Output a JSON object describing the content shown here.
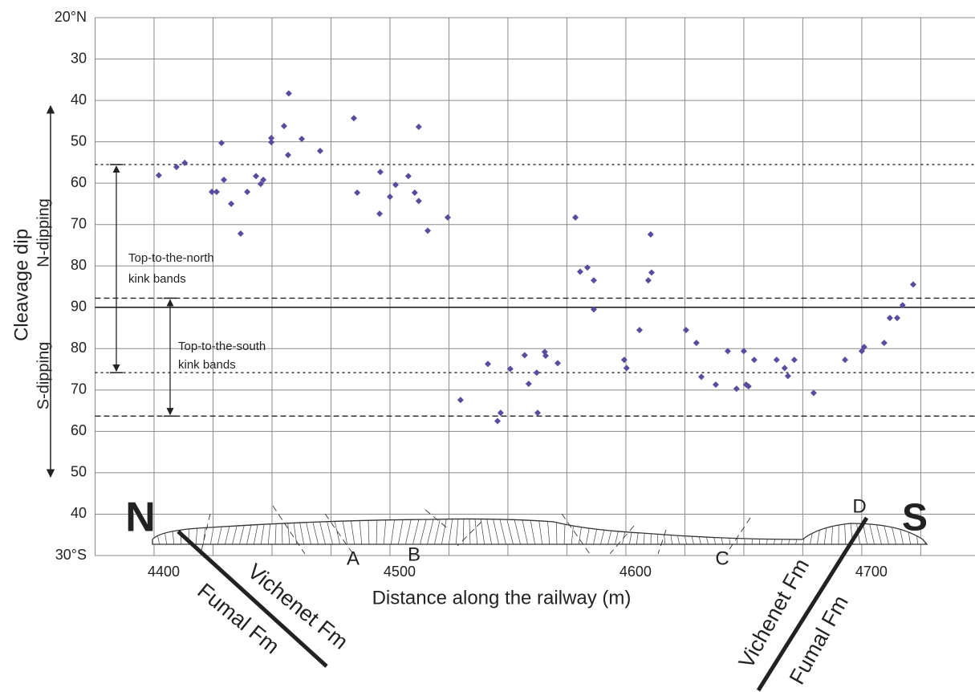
{
  "chart_data": {
    "type": "scatter",
    "ylabel": "Cleavage dip",
    "xlabel": "Distance along the railway (m)",
    "xlim": [
      4375,
      4748
    ],
    "xticks": [
      4400,
      4500,
      4600,
      4700
    ],
    "x_gridlines": [
      4375,
      4400,
      4425,
      4450,
      4475,
      4500,
      4525,
      4550,
      4575,
      4600,
      4625,
      4650,
      4675,
      4700,
      4725
    ],
    "ylim": [
      20,
      150
    ],
    "y_reversed": true,
    "yticks": [
      {
        "value": 20,
        "label": "20°N"
      },
      30,
      40,
      50,
      60,
      70,
      80,
      90,
      {
        "value": 100,
        "label": "80"
      },
      {
        "value": 110,
        "label": "70"
      },
      {
        "value": 120,
        "label": "60"
      },
      {
        "value": 130,
        "label": "50"
      },
      {
        "value": 140,
        "label": "40"
      },
      {
        "value": 150,
        "label": "30°S"
      }
    ],
    "grid": true,
    "color": "#5b4a9e",
    "x": [
      4402,
      4409.5,
      4413,
      4424.5,
      4426.5,
      4428.6,
      4429.6,
      4432.7,
      4436.7,
      4439.5,
      4443.2,
      4445.2,
      4446.3,
      4449.7,
      4449.7,
      4455.1,
      4456.8,
      4457.1,
      4462.6,
      4470.4,
      4484.7,
      4486.1,
      4495.6,
      4495.9,
      4500,
      4502.4,
      4507.8,
      4510.5,
      4512.2,
      4512.2,
      4516,
      4524.5,
      4529.9,
      4541.5,
      4545.6,
      4546.9,
      4551,
      4557.1,
      4558.8,
      4562.2,
      4562.6,
      4565.6,
      4566,
      4571.1,
      4578.6,
      4580.6,
      4583.7,
      4586.4,
      4586.4,
      4599.3,
      4600.3,
      4605.8,
      4609.5,
      4610.5,
      4610.9,
      4625.5,
      4629.9,
      4632,
      4638.1,
      4643.2,
      4646.9,
      4650,
      4651,
      4652,
      4654.4,
      4663.9,
      4667.3,
      4668.7,
      4671.4,
      4679.6,
      4692.9,
      4700,
      4701,
      4709.5,
      4711.9,
      4715,
      4717.3,
      4721.8
    ],
    "values": [
      58.1,
      56.1,
      55.1,
      62.1,
      62.1,
      50.3,
      59.2,
      65,
      72.2,
      62.1,
      58.3,
      60.2,
      59.2,
      50.1,
      49.1,
      46.2,
      53.2,
      38.3,
      49.3,
      52.2,
      44.3,
      62.3,
      67.4,
      57.3,
      63.3,
      60.4,
      58.3,
      62.3,
      64.3,
      46.4,
      71.5,
      68.3,
      112.4,
      103.7,
      117.5,
      115.5,
      104.9,
      101.6,
      108.5,
      105.8,
      115.5,
      100.8,
      101.7,
      103.5,
      68.3,
      81.4,
      80.4,
      83.5,
      90.5,
      102.7,
      104.7,
      95.5,
      83.5,
      72.4,
      81.6,
      95.5,
      98.6,
      106.8,
      108.7,
      100.6,
      109.7,
      100.6,
      108.7,
      109.1,
      102.7,
      102.7,
      104.7,
      106.6,
      102.7,
      110.7,
      102.7,
      100.6,
      99.6,
      98.6,
      92.6,
      92.6,
      89.5,
      84.5
    ],
    "reference_lines": [
      {
        "value": 55.5,
        "style": "dotted"
      },
      {
        "value": 87.8,
        "style": "dashed"
      },
      {
        "value": 90,
        "style": "solid"
      },
      {
        "value": 105.8,
        "style": "dotted"
      },
      {
        "value": 116.3,
        "style": "dashed"
      }
    ],
    "annotations": [
      "Top-to-the-north",
      "kink bands",
      "Top-to-the-south",
      "kink bands",
      "N-dipping",
      "S-dipping",
      "N",
      "S",
      "A",
      "B",
      "C",
      "D",
      "Vichenet Fm",
      "Fumal Fm",
      "Vichenet Fm",
      "Fumal Fm"
    ]
  }
}
